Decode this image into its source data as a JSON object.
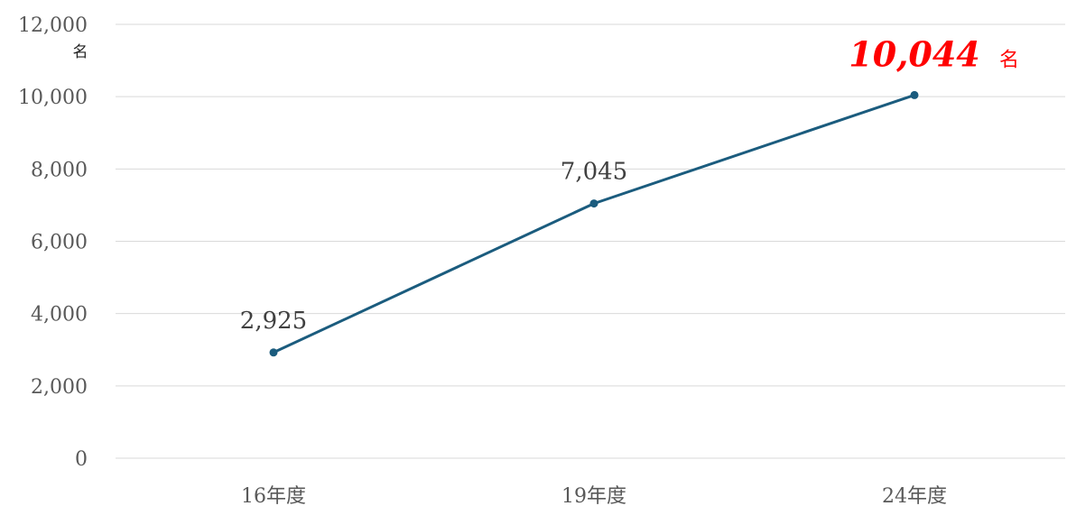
{
  "chart_data": {
    "type": "line",
    "categories": [
      "16年度",
      "19年度",
      "24年度"
    ],
    "series": [
      {
        "values": [
          2925,
          7045,
          10044
        ]
      }
    ],
    "data_labels": [
      "2,925",
      "7,045"
    ],
    "highlight": {
      "value": "10,044",
      "unit": "名"
    },
    "y_unit": "名",
    "y_ticks": [
      "0",
      "2,000",
      "4,000",
      "6,000",
      "8,000",
      "10,000",
      "12,000"
    ],
    "ylim": [
      0,
      12000
    ],
    "grid": true,
    "title": "",
    "xlabel": "",
    "ylabel": ""
  },
  "colors": {
    "line": "#1b5c7e",
    "grid": "#d9d9d9",
    "highlight": "#ff0000"
  }
}
